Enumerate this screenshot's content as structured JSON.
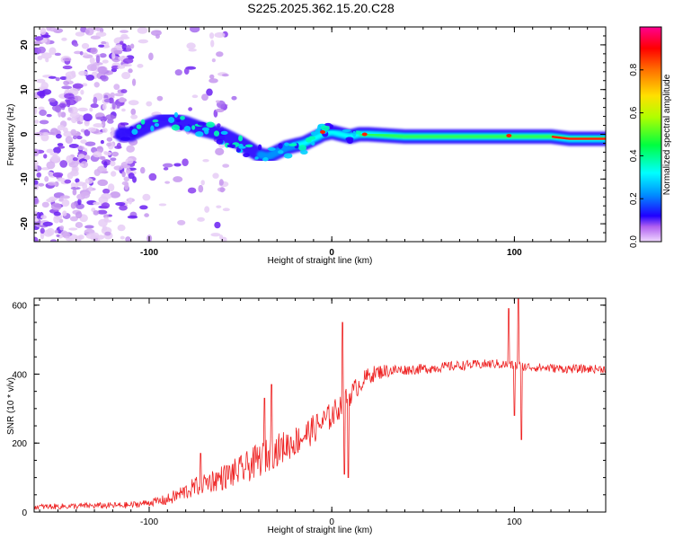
{
  "figure_title": "S225.2025.362.15.20.C28",
  "chart_data": [
    {
      "type": "heatmap",
      "title": "S225.2025.362.15.20.C28",
      "xlabel": "Height of straight line (km)",
      "ylabel": "Frequency (Hz)",
      "xlim": [
        -163,
        150
      ],
      "ylim": [
        -24,
        24
      ],
      "x_ticks": [
        -100,
        0,
        100
      ],
      "y_ticks": [
        -20,
        -10,
        0,
        10,
        20
      ],
      "colorbar": {
        "label": "Normalized spectral amplitude",
        "range": [
          0,
          1
        ],
        "ticks": [
          "0.0",
          "0.2",
          "0.4",
          "0.6",
          "0.8"
        ],
        "colormap": [
          "#e8ccf4",
          "#8c50f0",
          "#2b00ff",
          "#0094ff",
          "#00ffff",
          "#00ff30",
          "#9aff00",
          "#ffe000",
          "#ff8000",
          "#ff0000",
          "#ff0090"
        ]
      },
      "ridge": {
        "description": "dominant frequency track vs height",
        "x": [
          -110,
          -100,
          -90,
          -80,
          -70,
          -60,
          -50,
          -40,
          -35,
          -30,
          -25,
          -20,
          -15,
          -10,
          -5,
          0,
          5,
          10,
          15,
          20,
          40,
          60,
          80,
          95,
          100,
          110,
          120,
          130,
          140,
          150
        ],
        "y": [
          0,
          2,
          3.5,
          2.5,
          1,
          0,
          -2,
          -4.5,
          -5,
          -4,
          -3,
          -2.5,
          -2,
          -1,
          0,
          0.5,
          0,
          -0.5,
          0,
          0,
          -0.5,
          -0.5,
          -0.5,
          -0.5,
          -0.5,
          -0.5,
          -0.5,
          -1,
          -1,
          -1
        ]
      }
    },
    {
      "type": "line",
      "title": "",
      "xlabel": "Height of straight line (km)",
      "ylabel": "SNR (10 * v/v)",
      "xlim": [
        -163,
        150
      ],
      "ylim": [
        0,
        620
      ],
      "x_ticks": [
        -100,
        0,
        100
      ],
      "y_ticks": [
        0,
        200,
        400,
        600
      ],
      "color": "#ee2222",
      "series": [
        {
          "name": "SNR",
          "trend_x": [
            -163,
            -110,
            -90,
            -80,
            -70,
            -60,
            -50,
            -40,
            -30,
            -20,
            -10,
            0,
            5,
            10,
            15,
            20,
            25,
            30,
            50,
            70,
            90,
            110,
            130,
            150
          ],
          "trend_y": [
            15,
            20,
            35,
            60,
            85,
            100,
            120,
            150,
            180,
            205,
            240,
            280,
            310,
            340,
            370,
            395,
            405,
            410,
            415,
            425,
            430,
            420,
            415,
            415
          ],
          "noise_amplitude_x": [
            -163,
            -100,
            -80,
            -40,
            -20,
            0,
            20,
            40,
            150
          ],
          "noise_amplitude_y": [
            8,
            10,
            25,
            50,
            45,
            40,
            25,
            15,
            12
          ],
          "spikes": [
            {
              "x": -72,
              "y": 170
            },
            {
              "x": -37,
              "y": 330
            },
            {
              "x": -33,
              "y": 370
            },
            {
              "x": 6,
              "y": 550
            },
            {
              "x": 7,
              "y": 110
            },
            {
              "x": 9,
              "y": 100
            },
            {
              "x": 97,
              "y": 590
            },
            {
              "x": 102,
              "y": 620
            },
            {
              "x": 104,
              "y": 210
            },
            {
              "x": 100,
              "y": 280
            }
          ]
        }
      ]
    }
  ]
}
